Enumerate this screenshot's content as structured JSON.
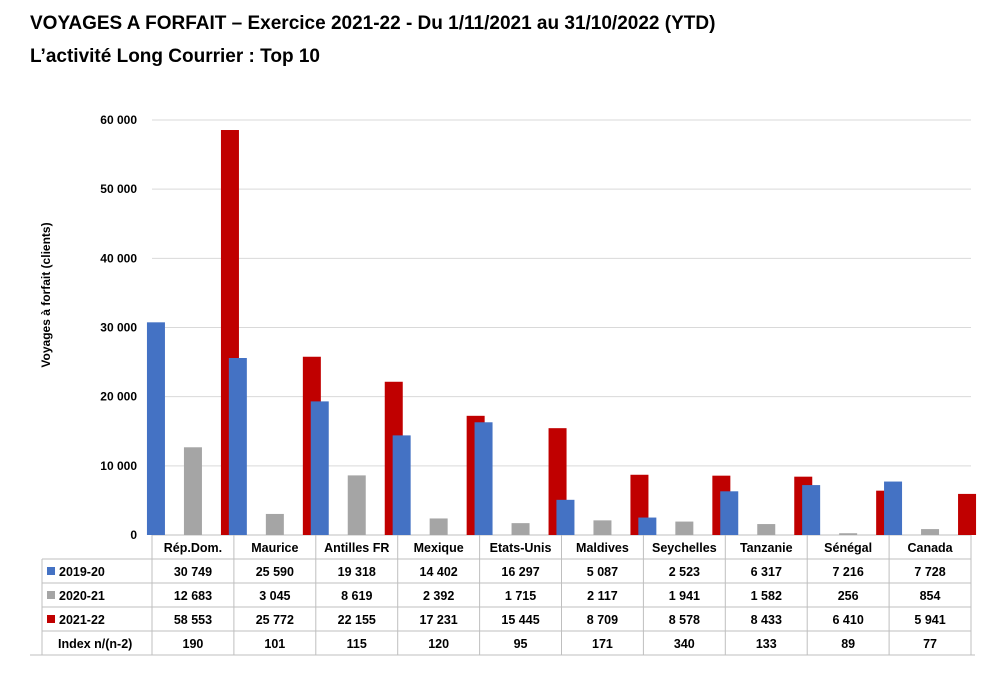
{
  "header": {
    "title": "VOYAGES A FORFAIT – Exercice 2021-22 - Du 1/11/2021 au 31/10/2022 (YTD)",
    "subtitle": "L’activité Long Courrier : Top 10"
  },
  "chart_data": {
    "type": "bar",
    "ylabel": "Voyages à forfait (clients)",
    "ylim": [
      0,
      60000
    ],
    "yticks": [
      0,
      10000,
      20000,
      30000,
      40000,
      50000,
      60000
    ],
    "ytick_labels": [
      "0",
      "10 000",
      "20 000",
      "30 000",
      "40 000",
      "50 000",
      "60 000"
    ],
    "grid": true,
    "categories": [
      "Rép.Dom.",
      "Maurice",
      "Antilles FR",
      "Mexique",
      "Etats-Unis",
      "Maldives",
      "Seychelles",
      "Tanzanie",
      "Sénégal",
      "Canada"
    ],
    "series": [
      {
        "name": "2019-20",
        "color": "#4472C4",
        "values": [
          30749,
          25590,
          19318,
          14402,
          16297,
          5087,
          2523,
          6317,
          7216,
          7728
        ],
        "labels": [
          "30 749",
          "25 590",
          "19 318",
          "14 402",
          "16 297",
          "5 087",
          "2 523",
          "6 317",
          "7 216",
          "7 728"
        ]
      },
      {
        "name": "2020-21",
        "color": "#A5A5A5",
        "values": [
          12683,
          3045,
          8619,
          2392,
          1715,
          2117,
          1941,
          1582,
          256,
          854
        ],
        "labels": [
          "12 683",
          "3 045",
          "8 619",
          "2 392",
          "1 715",
          "2 117",
          "1 941",
          "1 582",
          "256",
          "854"
        ]
      },
      {
        "name": "2021-22",
        "color": "#C00000",
        "values": [
          58553,
          25772,
          22155,
          17231,
          15445,
          8709,
          8578,
          8433,
          6410,
          5941
        ],
        "labels": [
          "58 553",
          "25 772",
          "22 155",
          "17 231",
          "15 445",
          "8 709",
          "8 578",
          "8 433",
          "6 410",
          "5 941"
        ]
      }
    ],
    "index_row": {
      "label": "Index n/(n-2)",
      "values": [
        "190",
        "101",
        "115",
        "120",
        "95",
        "171",
        "340",
        "133",
        "89",
        "77"
      ]
    }
  }
}
